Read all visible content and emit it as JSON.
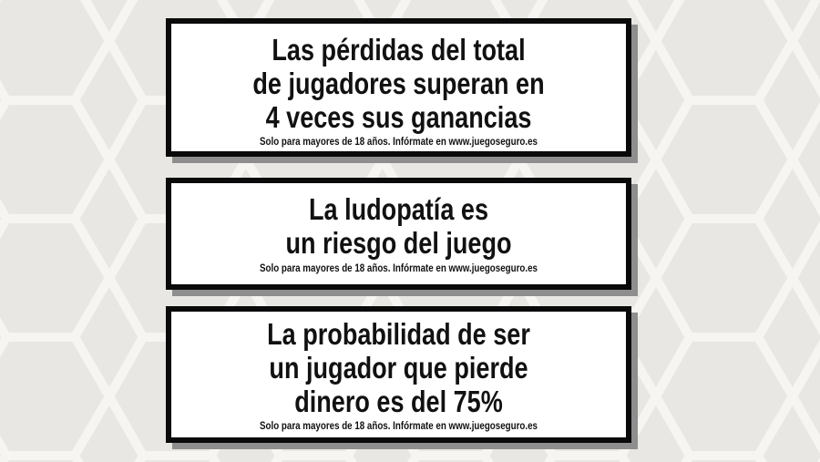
{
  "colors": {
    "background": "#e9e7e3",
    "border": "#0a0a0a",
    "shadow": "#8e8e8e"
  },
  "warnings": [
    {
      "lines": [
        "Las pérdidas del total",
        "de jugadores superan en",
        "4 veces sus ganancias"
      ],
      "footer": "Solo para mayores de 18 años. Infórmate en www.juegoseguro.es"
    },
    {
      "lines": [
        "La ludopatía es",
        "un riesgo del juego"
      ],
      "footer": "Solo para mayores de 18 años. Infórmate en www.juegoseguro.es"
    },
    {
      "lines": [
        "La probabilidad de ser",
        "un jugador que pierde",
        "dinero es del 75%"
      ],
      "footer": "Solo para mayores de 18 años. Infórmate en www.juegoseguro.es"
    }
  ]
}
